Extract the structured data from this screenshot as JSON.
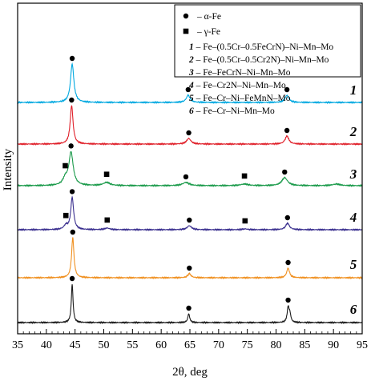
{
  "chart_data": {
    "type": "line",
    "xlabel": "2θ, deg",
    "ylabel": "Intensity",
    "xlim": [
      35,
      95
    ],
    "xticks": [
      35,
      40,
      45,
      50,
      55,
      60,
      65,
      70,
      75,
      80,
      85,
      90,
      95
    ],
    "colors": [
      "#00a8e0",
      "#e0202a",
      "#1a9a4a",
      "#3a2f8f",
      "#f09020",
      "#1a1a1a"
    ],
    "marker_legend": [
      {
        "symbol": "circle",
        "label": "– α-Fe"
      },
      {
        "symbol": "square",
        "label": "– γ-Fe"
      }
    ],
    "series": [
      {
        "name": "Fe–(0.5Cr–0.5FeCrN)–Ni–Mn–Mo",
        "number": "1",
        "peaks": [
          {
            "x": 44.5,
            "height": 48,
            "width": 0.35
          },
          {
            "x": 64.7,
            "height": 9,
            "width": 0.4
          },
          {
            "x": 81.9,
            "height": 9,
            "width": 0.4
          }
        ],
        "alpha_markers": [
          44.5,
          64.7,
          81.9
        ],
        "gamma_markers": []
      },
      {
        "name": "Fe–(0.5Cr–0.5Cr2N)–Ni–Mn–Mo",
        "number": "2",
        "peaks": [
          {
            "x": 44.4,
            "height": 48,
            "width": 0.3
          },
          {
            "x": 64.8,
            "height": 7,
            "width": 0.45
          },
          {
            "x": 81.9,
            "height": 10,
            "width": 0.4
          }
        ],
        "alpha_markers": [
          44.4,
          64.8,
          81.9
        ],
        "gamma_markers": []
      },
      {
        "name": "Fe–FeCrN–Ni–Mn–Mo",
        "number": "3",
        "peaks": [
          {
            "x": 43.3,
            "height": 8,
            "width": 0.5
          },
          {
            "x": 44.3,
            "height": 41,
            "width": 0.45
          },
          {
            "x": 50.5,
            "height": 4,
            "width": 0.7
          },
          {
            "x": 64.3,
            "height": 4,
            "width": 0.7
          },
          {
            "x": 74.5,
            "height": 2,
            "width": 0.8
          },
          {
            "x": 81.5,
            "height": 10,
            "width": 0.6
          },
          {
            "x": 90.5,
            "height": 2,
            "width": 0.8
          }
        ],
        "alpha_markers": [
          44.3,
          64.3,
          81.5
        ],
        "gamma_markers": [
          43.3,
          50.5,
          74.5
        ]
      },
      {
        "name": "Fe–Cr2N–Ni–Mn–Mo",
        "number": "4",
        "peaks": [
          {
            "x": 43.4,
            "height": 5,
            "width": 0.4
          },
          {
            "x": 44.5,
            "height": 40,
            "width": 0.3
          },
          {
            "x": 50.6,
            "height": 2,
            "width": 0.5
          },
          {
            "x": 64.9,
            "height": 5,
            "width": 0.45
          },
          {
            "x": 74.6,
            "height": 1,
            "width": 0.5
          },
          {
            "x": 82.0,
            "height": 8,
            "width": 0.4
          }
        ],
        "alpha_markers": [
          44.5,
          64.9,
          82.0
        ],
        "gamma_markers": [
          43.4,
          50.6,
          74.6
        ]
      },
      {
        "name": "Fe–Cr–Ni–FeMnN–Mo",
        "number": "5",
        "peaks": [
          {
            "x": 44.6,
            "height": 50,
            "width": 0.25
          },
          {
            "x": 64.9,
            "height": 5,
            "width": 0.35
          },
          {
            "x": 82.1,
            "height": 12,
            "width": 0.3
          }
        ],
        "alpha_markers": [
          44.6,
          64.9,
          82.1
        ],
        "gamma_markers": []
      },
      {
        "name": "Fe–Cr–Ni–Mn–Mo",
        "number": "6",
        "peaks": [
          {
            "x": 44.5,
            "height": 48,
            "width": 0.18
          },
          {
            "x": 64.8,
            "height": 11,
            "width": 0.2
          },
          {
            "x": 82.1,
            "height": 18,
            "width": 0.2
          },
          {
            "x": 82.4,
            "height": 10,
            "width": 0.2
          }
        ],
        "alpha_markers": [
          44.5,
          64.8,
          82.1
        ],
        "gamma_markers": []
      }
    ]
  }
}
